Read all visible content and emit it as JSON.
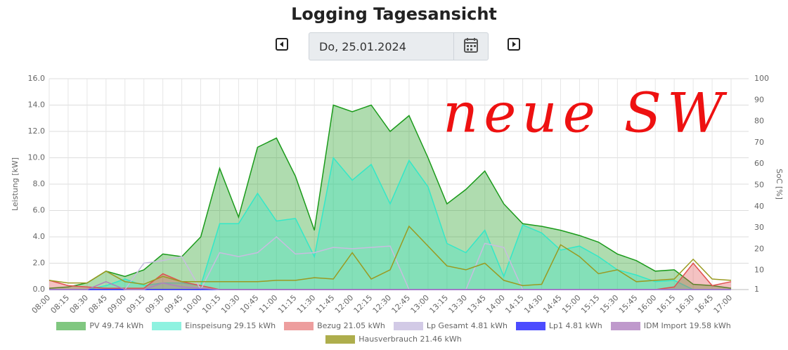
{
  "header": {
    "title": "Logging Tagesansicht",
    "date": "Do, 25.01.2024"
  },
  "chart_data": {
    "type": "area",
    "y_label": "Leistung [kW]",
    "y2_label": "SoC [%]",
    "annotation": "neue SW",
    "categories": [
      "08:00",
      "08:15",
      "08:30",
      "08:45",
      "09:00",
      "09:15",
      "09:30",
      "09:45",
      "10:00",
      "10:15",
      "10:30",
      "10:45",
      "11:00",
      "11:15",
      "11:30",
      "11:45",
      "12:00",
      "12:15",
      "12:30",
      "12:45",
      "13:00",
      "13:15",
      "13:30",
      "13:45",
      "14:00",
      "14:15",
      "14:30",
      "14:45",
      "15:00",
      "15:15",
      "15:30",
      "15:45",
      "16:00",
      "16:15",
      "16:30",
      "16:45",
      "17:00"
    ],
    "ylim": [
      0,
      16
    ],
    "yticks": [
      {
        "value": 0,
        "label": "0.0"
      },
      {
        "value": 2,
        "label": "2.0"
      },
      {
        "value": 4,
        "label": "4.0"
      },
      {
        "value": 6,
        "label": "6.0"
      },
      {
        "value": 8,
        "label": "8.0"
      },
      {
        "value": 10,
        "label": "10.0"
      },
      {
        "value": 12,
        "label": "12.0"
      },
      {
        "value": 14,
        "label": "14.0"
      },
      {
        "value": 16,
        "label": "16.0"
      }
    ],
    "y2lim": [
      1,
      100
    ],
    "y2ticks": [
      1,
      10,
      20,
      30,
      40,
      50,
      60,
      70,
      80,
      90,
      100
    ],
    "grid": true,
    "series": [
      {
        "name": "PV 49.74 kWh",
        "color": "#1a9a1a",
        "fill": true,
        "values": [
          0.1,
          0.2,
          0.5,
          1.4,
          1.0,
          1.5,
          2.7,
          2.5,
          4.0,
          9.2,
          5.5,
          10.8,
          11.5,
          8.6,
          4.5,
          14.0,
          13.5,
          14.0,
          12.0,
          13.2,
          10.0,
          6.5,
          7.6,
          9.0,
          6.5,
          5.0,
          4.8,
          4.5,
          4.1,
          3.6,
          2.7,
          2.2,
          1.4,
          1.5,
          0.4,
          0.3,
          0.1
        ]
      },
      {
        "name": "Einspeisung 29.15 kWh",
        "color": "#33e8c8",
        "fill": true,
        "values": [
          0,
          0,
          0,
          0.3,
          0.8,
          0.3,
          0.5,
          0.5,
          0.3,
          5.0,
          5.0,
          7.3,
          5.2,
          5.4,
          2.5,
          10.0,
          8.3,
          9.5,
          6.5,
          9.8,
          7.8,
          3.5,
          2.8,
          4.5,
          1.0,
          4.9,
          4.3,
          3.0,
          3.3,
          2.5,
          1.5,
          1.1,
          0.6,
          0.7,
          0,
          0,
          0
        ]
      },
      {
        "name": "Bezug 21.05 kWh",
        "color": "#e05050",
        "fill": true,
        "values": [
          0.7,
          0.3,
          0.2,
          0.1,
          0.1,
          0.1,
          1.2,
          0.6,
          0.3,
          0,
          0,
          0,
          0,
          0,
          0,
          0,
          0,
          0,
          0,
          0,
          0,
          0,
          0,
          0,
          0,
          0,
          0,
          0,
          0,
          0,
          0,
          0,
          0,
          0.2,
          2.0,
          0.3,
          0.6
        ]
      },
      {
        "name": "Lp Gesamt 4.81 kWh",
        "color": "#c8bde0",
        "fill": false,
        "values": [
          0,
          0,
          0,
          0,
          0,
          2.0,
          2.2,
          2.5,
          0,
          2.8,
          2.5,
          2.8,
          4.0,
          2.7,
          2.8,
          3.2,
          3.1,
          3.2,
          3.3,
          0,
          0,
          0,
          0,
          3.5,
          3.2,
          0,
          0,
          0,
          0,
          0,
          0,
          0,
          0,
          0,
          0,
          0,
          0
        ]
      },
      {
        "name": "Lp1 4.81 kWh",
        "color": "#2020ff",
        "fill": false,
        "values": [
          0,
          0,
          0,
          0,
          0,
          0,
          0,
          0,
          0,
          0,
          0,
          0,
          0,
          0,
          0,
          0,
          0,
          0,
          0,
          0,
          0,
          0,
          0,
          0,
          0,
          0,
          0,
          0,
          0,
          0,
          0,
          0,
          0,
          0,
          0,
          0,
          0
        ]
      },
      {
        "name": "IDM Import 19.58 kWh",
        "color": "#b080c0",
        "fill": false,
        "values": [
          0,
          0,
          0,
          0.6,
          0,
          0,
          0.5,
          0.2,
          0.1,
          0,
          0,
          0,
          0,
          0,
          0,
          0,
          0,
          0,
          0,
          0,
          0,
          0,
          0,
          0,
          0,
          0,
          0,
          0,
          0,
          0,
          0,
          0,
          0,
          0,
          0,
          0,
          0
        ]
      },
      {
        "name": "Hausverbrauch 21.46 kWh",
        "color": "#9a9a20",
        "fill": false,
        "values": [
          0.7,
          0.5,
          0.5,
          1.4,
          0.6,
          0.4,
          1.0,
          0.6,
          0.6,
          0.6,
          0.6,
          0.6,
          0.7,
          0.7,
          0.9,
          0.8,
          2.8,
          0.8,
          1.5,
          4.8,
          3.3,
          1.8,
          1.5,
          2.0,
          0.7,
          0.3,
          0.4,
          3.4,
          2.5,
          1.2,
          1.5,
          0.6,
          0.7,
          0.8,
          2.3,
          0.8,
          0.7
        ]
      }
    ]
  }
}
